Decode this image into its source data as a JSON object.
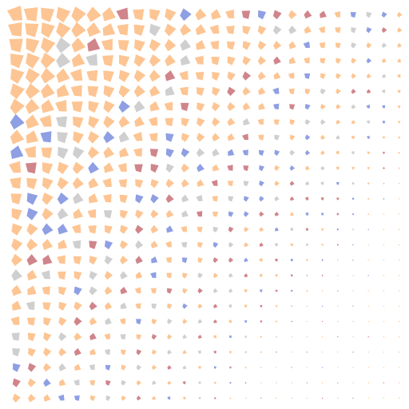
{
  "grid": {
    "cols": 26,
    "rows": 26
  },
  "palette": {
    "peach": "#fdc593",
    "blue": "#8f9fe3",
    "rose": "#d0858b",
    "gray": "#cfcfcf"
  },
  "highlights": [
    {
      "row": 0,
      "col": 7,
      "tone": "rose"
    },
    {
      "row": 0,
      "col": 11,
      "tone": "blue"
    },
    {
      "row": 0,
      "col": 15,
      "tone": "rose"
    },
    {
      "row": 0,
      "col": 16,
      "tone": "blue"
    },
    {
      "row": 0,
      "col": 17,
      "tone": "rose"
    },
    {
      "row": 0,
      "col": 19,
      "tone": "rose"
    },
    {
      "row": 0,
      "col": 20,
      "tone": "rose"
    },
    {
      "row": 0,
      "col": 22,
      "tone": "blue"
    },
    {
      "row": 0,
      "col": 23,
      "tone": "gray"
    },
    {
      "row": 0,
      "col": 24,
      "tone": "blue"
    },
    {
      "row": 1,
      "col": 9,
      "tone": "gray"
    },
    {
      "row": 1,
      "col": 17,
      "tone": "gray"
    },
    {
      "row": 1,
      "col": 18,
      "tone": "gray"
    },
    {
      "row": 1,
      "col": 22,
      "tone": "gray"
    },
    {
      "row": 1,
      "col": 23,
      "tone": "blue"
    },
    {
      "row": 1,
      "col": 24,
      "tone": "rose"
    },
    {
      "row": 2,
      "col": 3,
      "tone": "gray"
    },
    {
      "row": 2,
      "col": 5,
      "tone": "rose"
    },
    {
      "row": 2,
      "col": 11,
      "tone": "gray"
    },
    {
      "row": 2,
      "col": 19,
      "tone": "blue"
    },
    {
      "row": 2,
      "col": 22,
      "tone": "gray"
    },
    {
      "row": 2,
      "col": 24,
      "tone": "gray"
    },
    {
      "row": 3,
      "col": 3,
      "tone": "gray"
    },
    {
      "row": 3,
      "col": 5,
      "tone": "gray"
    },
    {
      "row": 3,
      "col": 11,
      "tone": "gray"
    },
    {
      "row": 3,
      "col": 17,
      "tone": "rose"
    },
    {
      "row": 3,
      "col": 23,
      "tone": "blue"
    },
    {
      "row": 4,
      "col": 10,
      "tone": "rose"
    },
    {
      "row": 4,
      "col": 15,
      "tone": "rose"
    },
    {
      "row": 4,
      "col": 19,
      "tone": "blue"
    },
    {
      "row": 4,
      "col": 24,
      "tone": "gray"
    },
    {
      "row": 5,
      "col": 10,
      "tone": "gray"
    },
    {
      "row": 5,
      "col": 14,
      "tone": "rose"
    },
    {
      "row": 5,
      "col": 17,
      "tone": "blue"
    },
    {
      "row": 5,
      "col": 20,
      "tone": "gray"
    },
    {
      "row": 5,
      "col": 22,
      "tone": "rose"
    },
    {
      "row": 5,
      "col": 23,
      "tone": "rose"
    },
    {
      "row": 5,
      "col": 24,
      "tone": "gray"
    },
    {
      "row": 6,
      "col": 7,
      "tone": "blue"
    },
    {
      "row": 6,
      "col": 8,
      "tone": "gray"
    },
    {
      "row": 6,
      "col": 11,
      "tone": "rose"
    },
    {
      "row": 6,
      "col": 17,
      "tone": "blue"
    },
    {
      "row": 6,
      "col": 18,
      "tone": "rose"
    },
    {
      "row": 6,
      "col": 19,
      "tone": "blue"
    },
    {
      "row": 6,
      "col": 22,
      "tone": "gray"
    },
    {
      "row": 6,
      "col": 23,
      "tone": "blue"
    },
    {
      "row": 6,
      "col": 24,
      "tone": "blue"
    },
    {
      "row": 7,
      "col": 0,
      "tone": "blue"
    },
    {
      "row": 7,
      "col": 3,
      "tone": "gray"
    },
    {
      "row": 7,
      "col": 9,
      "tone": "peach"
    },
    {
      "row": 7,
      "col": 15,
      "tone": "gray"
    },
    {
      "row": 7,
      "col": 19,
      "tone": "gray"
    },
    {
      "row": 7,
      "col": 20,
      "tone": "gray"
    },
    {
      "row": 7,
      "col": 23,
      "tone": "gray"
    },
    {
      "row": 7,
      "col": 24,
      "tone": "blue"
    },
    {
      "row": 8,
      "col": 2,
      "tone": "blue"
    },
    {
      "row": 8,
      "col": 3,
      "tone": "gray"
    },
    {
      "row": 8,
      "col": 6,
      "tone": "blue"
    },
    {
      "row": 8,
      "col": 7,
      "tone": "gray"
    },
    {
      "row": 8,
      "col": 10,
      "tone": "blue"
    },
    {
      "row": 8,
      "col": 15,
      "tone": "rose"
    },
    {
      "row": 8,
      "col": 17,
      "tone": "gray"
    },
    {
      "row": 8,
      "col": 19,
      "tone": "blue"
    },
    {
      "row": 8,
      "col": 21,
      "tone": "gray"
    },
    {
      "row": 8,
      "col": 23,
      "tone": "blue"
    },
    {
      "row": 9,
      "col": 0,
      "tone": "blue"
    },
    {
      "row": 9,
      "col": 3,
      "tone": "gray"
    },
    {
      "row": 9,
      "col": 4,
      "tone": "gray"
    },
    {
      "row": 9,
      "col": 9,
      "tone": "rose"
    },
    {
      "row": 9,
      "col": 10,
      "tone": "blue"
    },
    {
      "row": 9,
      "col": 11,
      "tone": "blue"
    },
    {
      "row": 9,
      "col": 12,
      "tone": "gray"
    },
    {
      "row": 9,
      "col": 13,
      "tone": "gray"
    },
    {
      "row": 9,
      "col": 14,
      "tone": "blue"
    },
    {
      "row": 9,
      "col": 15,
      "tone": "blue"
    },
    {
      "row": 9,
      "col": 16,
      "tone": "blue"
    },
    {
      "row": 9,
      "col": 17,
      "tone": "blue"
    },
    {
      "row": 9,
      "col": 18,
      "tone": "gray"
    },
    {
      "row": 9,
      "col": 19,
      "tone": "blue"
    },
    {
      "row": 9,
      "col": 22,
      "tone": "gray"
    },
    {
      "row": 9,
      "col": 24,
      "tone": "rose"
    },
    {
      "row": 10,
      "col": 1,
      "tone": "rose"
    },
    {
      "row": 10,
      "col": 5,
      "tone": "blue"
    },
    {
      "row": 10,
      "col": 8,
      "tone": "rose"
    },
    {
      "row": 10,
      "col": 9,
      "tone": "rose"
    },
    {
      "row": 10,
      "col": 10,
      "tone": "gray"
    },
    {
      "row": 10,
      "col": 12,
      "tone": "blue"
    },
    {
      "row": 10,
      "col": 14,
      "tone": "rose"
    },
    {
      "row": 10,
      "col": 15,
      "tone": "rose"
    },
    {
      "row": 10,
      "col": 16,
      "tone": "blue"
    },
    {
      "row": 10,
      "col": 18,
      "tone": "blue"
    },
    {
      "row": 10,
      "col": 20,
      "tone": "gray"
    },
    {
      "row": 10,
      "col": 24,
      "tone": "rose"
    },
    {
      "row": 11,
      "col": 13,
      "tone": "rose"
    },
    {
      "row": 11,
      "col": 15,
      "tone": "gray"
    },
    {
      "row": 11,
      "col": 16,
      "tone": "blue"
    },
    {
      "row": 11,
      "col": 18,
      "tone": "rose"
    },
    {
      "row": 11,
      "col": 19,
      "tone": "gray"
    },
    {
      "row": 11,
      "col": 20,
      "tone": "gray"
    },
    {
      "row": 11,
      "col": 21,
      "tone": "blue"
    },
    {
      "row": 11,
      "col": 22,
      "tone": "gray"
    },
    {
      "row": 11,
      "col": 24,
      "tone": "gray"
    },
    {
      "row": 12,
      "col": 1,
      "tone": "blue"
    },
    {
      "row": 12,
      "col": 3,
      "tone": "blue"
    },
    {
      "row": 12,
      "col": 4,
      "tone": "gray"
    },
    {
      "row": 12,
      "col": 8,
      "tone": "blue"
    },
    {
      "row": 12,
      "col": 9,
      "tone": "blue"
    },
    {
      "row": 12,
      "col": 10,
      "tone": "rose"
    },
    {
      "row": 12,
      "col": 11,
      "tone": "gray"
    },
    {
      "row": 12,
      "col": 12,
      "tone": "gray"
    },
    {
      "row": 12,
      "col": 14,
      "tone": "gray"
    },
    {
      "row": 12,
      "col": 15,
      "tone": "blue"
    },
    {
      "row": 12,
      "col": 16,
      "tone": "blue"
    },
    {
      "row": 12,
      "col": 17,
      "tone": "gray"
    },
    {
      "row": 12,
      "col": 18,
      "tone": "rose"
    },
    {
      "row": 12,
      "col": 19,
      "tone": "rose"
    },
    {
      "row": 12,
      "col": 20,
      "tone": "rose"
    },
    {
      "row": 12,
      "col": 21,
      "tone": "rose"
    },
    {
      "row": 12,
      "col": 22,
      "tone": "blue"
    },
    {
      "row": 12,
      "col": 24,
      "tone": "blue"
    },
    {
      "row": 13,
      "col": 1,
      "tone": "blue"
    },
    {
      "row": 13,
      "col": 3,
      "tone": "gray"
    },
    {
      "row": 13,
      "col": 6,
      "tone": "gray"
    },
    {
      "row": 13,
      "col": 11,
      "tone": "gray"
    },
    {
      "row": 13,
      "col": 12,
      "tone": "rose"
    },
    {
      "row": 13,
      "col": 14,
      "tone": "blue"
    },
    {
      "row": 13,
      "col": 15,
      "tone": "blue"
    },
    {
      "row": 13,
      "col": 16,
      "tone": "rose"
    },
    {
      "row": 13,
      "col": 17,
      "tone": "rose"
    },
    {
      "row": 13,
      "col": 19,
      "tone": "blue"
    },
    {
      "row": 13,
      "col": 20,
      "tone": "blue"
    },
    {
      "row": 13,
      "col": 21,
      "tone": "rose"
    },
    {
      "row": 13,
      "col": 22,
      "tone": "blue"
    },
    {
      "row": 14,
      "col": 2,
      "tone": "blue"
    },
    {
      "row": 14,
      "col": 3,
      "tone": "blue"
    },
    {
      "row": 14,
      "col": 8,
      "tone": "rose"
    },
    {
      "row": 14,
      "col": 10,
      "tone": "blue"
    },
    {
      "row": 14,
      "col": 13,
      "tone": "gray"
    },
    {
      "row": 14,
      "col": 14,
      "tone": "rose"
    },
    {
      "row": 14,
      "col": 17,
      "tone": "blue"
    },
    {
      "row": 14,
      "col": 18,
      "tone": "gray"
    },
    {
      "row": 14,
      "col": 19,
      "tone": "rose"
    },
    {
      "row": 14,
      "col": 21,
      "tone": "blue"
    },
    {
      "row": 14,
      "col": 22,
      "tone": "gray"
    },
    {
      "row": 14,
      "col": 23,
      "tone": "blue"
    },
    {
      "row": 15,
      "col": 4,
      "tone": "gray"
    },
    {
      "row": 15,
      "col": 5,
      "tone": "rose"
    },
    {
      "row": 15,
      "col": 6,
      "tone": "blue"
    },
    {
      "row": 15,
      "col": 8,
      "tone": "gray"
    },
    {
      "row": 15,
      "col": 11,
      "tone": "gray"
    },
    {
      "row": 15,
      "col": 13,
      "tone": "blue"
    },
    {
      "row": 15,
      "col": 14,
      "tone": "gray"
    },
    {
      "row": 15,
      "col": 16,
      "tone": "rose"
    },
    {
      "row": 15,
      "col": 17,
      "tone": "gray"
    },
    {
      "row": 15,
      "col": 19,
      "tone": "gray"
    },
    {
      "row": 15,
      "col": 21,
      "tone": "rose"
    },
    {
      "row": 15,
      "col": 22,
      "tone": "blue"
    },
    {
      "row": 15,
      "col": 23,
      "tone": "gray"
    },
    {
      "row": 16,
      "col": 1,
      "tone": "rose"
    },
    {
      "row": 16,
      "col": 2,
      "tone": "rose"
    },
    {
      "row": 16,
      "col": 6,
      "tone": "gray"
    },
    {
      "row": 16,
      "col": 8,
      "tone": "rose"
    },
    {
      "row": 16,
      "col": 9,
      "tone": "blue"
    },
    {
      "row": 16,
      "col": 11,
      "tone": "blue"
    },
    {
      "row": 16,
      "col": 13,
      "tone": "rose"
    },
    {
      "row": 16,
      "col": 14,
      "tone": "rose"
    },
    {
      "row": 16,
      "col": 15,
      "tone": "blue"
    },
    {
      "row": 16,
      "col": 17,
      "tone": "rose"
    },
    {
      "row": 16,
      "col": 18,
      "tone": "blue"
    },
    {
      "row": 16,
      "col": 20,
      "tone": "blue"
    },
    {
      "row": 16,
      "col": 22,
      "tone": "rose"
    },
    {
      "row": 16,
      "col": 24,
      "tone": "gray"
    },
    {
      "row": 17,
      "col": 0,
      "tone": "gray"
    },
    {
      "row": 17,
      "col": 2,
      "tone": "gray"
    },
    {
      "row": 17,
      "col": 5,
      "tone": "gray"
    },
    {
      "row": 17,
      "col": 7,
      "tone": "gray"
    },
    {
      "row": 17,
      "col": 9,
      "tone": "blue"
    },
    {
      "row": 17,
      "col": 12,
      "tone": "gray"
    },
    {
      "row": 17,
      "col": 14,
      "tone": "gray"
    },
    {
      "row": 17,
      "col": 15,
      "tone": "rose"
    },
    {
      "row": 17,
      "col": 18,
      "tone": "rose"
    },
    {
      "row": 17,
      "col": 19,
      "tone": "gray"
    },
    {
      "row": 17,
      "col": 20,
      "tone": "rose"
    },
    {
      "row": 17,
      "col": 23,
      "tone": "blue"
    },
    {
      "row": 18,
      "col": 4,
      "tone": "blue"
    },
    {
      "row": 18,
      "col": 5,
      "tone": "gray"
    },
    {
      "row": 18,
      "col": 7,
      "tone": "rose"
    },
    {
      "row": 18,
      "col": 10,
      "tone": "rose"
    },
    {
      "row": 18,
      "col": 12,
      "tone": "rose"
    },
    {
      "row": 18,
      "col": 13,
      "tone": "gray"
    },
    {
      "row": 18,
      "col": 14,
      "tone": "gray"
    },
    {
      "row": 18,
      "col": 16,
      "tone": "blue"
    },
    {
      "row": 18,
      "col": 17,
      "tone": "rose"
    },
    {
      "row": 18,
      "col": 18,
      "tone": "blue"
    },
    {
      "row": 18,
      "col": 21,
      "tone": "rose"
    },
    {
      "row": 18,
      "col": 24,
      "tone": "gray"
    },
    {
      "row": 19,
      "col": 1,
      "tone": "gray"
    },
    {
      "row": 19,
      "col": 5,
      "tone": "rose"
    },
    {
      "row": 19,
      "col": 7,
      "tone": "gray"
    },
    {
      "row": 19,
      "col": 9,
      "tone": "gray"
    },
    {
      "row": 19,
      "col": 11,
      "tone": "blue"
    },
    {
      "row": 19,
      "col": 13,
      "tone": "rose"
    },
    {
      "row": 19,
      "col": 14,
      "tone": "gray"
    },
    {
      "row": 19,
      "col": 16,
      "tone": "rose"
    },
    {
      "row": 19,
      "col": 18,
      "tone": "gray"
    },
    {
      "row": 19,
      "col": 20,
      "tone": "blue"
    },
    {
      "row": 19,
      "col": 22,
      "tone": "blue"
    },
    {
      "row": 20,
      "col": 4,
      "tone": "rose"
    },
    {
      "row": 20,
      "col": 6,
      "tone": "gray"
    },
    {
      "row": 20,
      "col": 8,
      "tone": "blue"
    },
    {
      "row": 20,
      "col": 10,
      "tone": "gray"
    },
    {
      "row": 20,
      "col": 12,
      "tone": "gray"
    },
    {
      "row": 20,
      "col": 13,
      "tone": "rose"
    },
    {
      "row": 20,
      "col": 15,
      "tone": "blue"
    },
    {
      "row": 20,
      "col": 16,
      "tone": "rose"
    },
    {
      "row": 20,
      "col": 18,
      "tone": "blue"
    },
    {
      "row": 20,
      "col": 20,
      "tone": "rose"
    },
    {
      "row": 20,
      "col": 22,
      "tone": "gray"
    },
    {
      "row": 21,
      "col": 0,
      "tone": "gray"
    },
    {
      "row": 21,
      "col": 3,
      "tone": "gray"
    },
    {
      "row": 21,
      "col": 5,
      "tone": "rose"
    },
    {
      "row": 21,
      "col": 7,
      "tone": "gray"
    },
    {
      "row": 21,
      "col": 9,
      "tone": "rose"
    },
    {
      "row": 21,
      "col": 11,
      "tone": "gray"
    },
    {
      "row": 21,
      "col": 12,
      "tone": "rose"
    },
    {
      "row": 21,
      "col": 14,
      "tone": "blue"
    },
    {
      "row": 21,
      "col": 15,
      "tone": "gray"
    },
    {
      "row": 21,
      "col": 17,
      "tone": "gray"
    },
    {
      "row": 21,
      "col": 19,
      "tone": "gray"
    },
    {
      "row": 21,
      "col": 21,
      "tone": "blue"
    },
    {
      "row": 21,
      "col": 23,
      "tone": "rose"
    },
    {
      "row": 22,
      "col": 0,
      "tone": "gray"
    },
    {
      "row": 22,
      "col": 4,
      "tone": "rose"
    },
    {
      "row": 22,
      "col": 6,
      "tone": "gray"
    },
    {
      "row": 22,
      "col": 8,
      "tone": "rose"
    },
    {
      "row": 22,
      "col": 10,
      "tone": "gray"
    },
    {
      "row": 22,
      "col": 12,
      "tone": "gray"
    },
    {
      "row": 22,
      "col": 13,
      "tone": "rose"
    },
    {
      "row": 22,
      "col": 15,
      "tone": "gray"
    },
    {
      "row": 22,
      "col": 17,
      "tone": "rose"
    },
    {
      "row": 22,
      "col": 19,
      "tone": "blue"
    },
    {
      "row": 22,
      "col": 21,
      "tone": "gray"
    },
    {
      "row": 22,
      "col": 22,
      "tone": "rose"
    },
    {
      "row": 23,
      "col": 0,
      "tone": "blue"
    },
    {
      "row": 23,
      "col": 1,
      "tone": "rose"
    },
    {
      "row": 23,
      "col": 3,
      "tone": "gray"
    },
    {
      "row": 23,
      "col": 5,
      "tone": "gray"
    },
    {
      "row": 23,
      "col": 6,
      "tone": "blue"
    },
    {
      "row": 23,
      "col": 8,
      "tone": "gray"
    },
    {
      "row": 23,
      "col": 10,
      "tone": "rose"
    },
    {
      "row": 23,
      "col": 11,
      "tone": "gray"
    },
    {
      "row": 23,
      "col": 13,
      "tone": "blue"
    },
    {
      "row": 23,
      "col": 14,
      "tone": "rose"
    },
    {
      "row": 23,
      "col": 16,
      "tone": "gray"
    },
    {
      "row": 23,
      "col": 18,
      "tone": "rose"
    },
    {
      "row": 23,
      "col": 20,
      "tone": "blue"
    },
    {
      "row": 23,
      "col": 22,
      "tone": "gray"
    },
    {
      "row": 24,
      "col": 0,
      "tone": "rose"
    },
    {
      "row": 24,
      "col": 2,
      "tone": "blue"
    },
    {
      "row": 24,
      "col": 4,
      "tone": "gray"
    },
    {
      "row": 24,
      "col": 6,
      "tone": "rose"
    },
    {
      "row": 24,
      "col": 7,
      "tone": "gray"
    },
    {
      "row": 24,
      "col": 9,
      "tone": "gray"
    },
    {
      "row": 24,
      "col": 11,
      "tone": "rose"
    },
    {
      "row": 24,
      "col": 12,
      "tone": "gray"
    },
    {
      "row": 24,
      "col": 14,
      "tone": "blue"
    },
    {
      "row": 24,
      "col": 15,
      "tone": "rose"
    },
    {
      "row": 24,
      "col": 17,
      "tone": "gray"
    },
    {
      "row": 24,
      "col": 19,
      "tone": "rose"
    },
    {
      "row": 24,
      "col": 21,
      "tone": "blue"
    },
    {
      "row": 24,
      "col": 24,
      "tone": "rose"
    },
    {
      "row": 25,
      "col": 3,
      "tone": "blue"
    },
    {
      "row": 25,
      "col": 4,
      "tone": "blue"
    },
    {
      "row": 25,
      "col": 6,
      "tone": "gray"
    },
    {
      "row": 25,
      "col": 8,
      "tone": "rose"
    },
    {
      "row": 25,
      "col": 10,
      "tone": "blue"
    },
    {
      "row": 25,
      "col": 12,
      "tone": "gray"
    },
    {
      "row": 25,
      "col": 13,
      "tone": "rose"
    },
    {
      "row": 25,
      "col": 15,
      "tone": "gray"
    },
    {
      "row": 25,
      "col": 16,
      "tone": "blue"
    },
    {
      "row": 25,
      "col": 18,
      "tone": "gray"
    },
    {
      "row": 25,
      "col": 20,
      "tone": "rose"
    },
    {
      "row": 25,
      "col": 22,
      "tone": "blue"
    }
  ]
}
